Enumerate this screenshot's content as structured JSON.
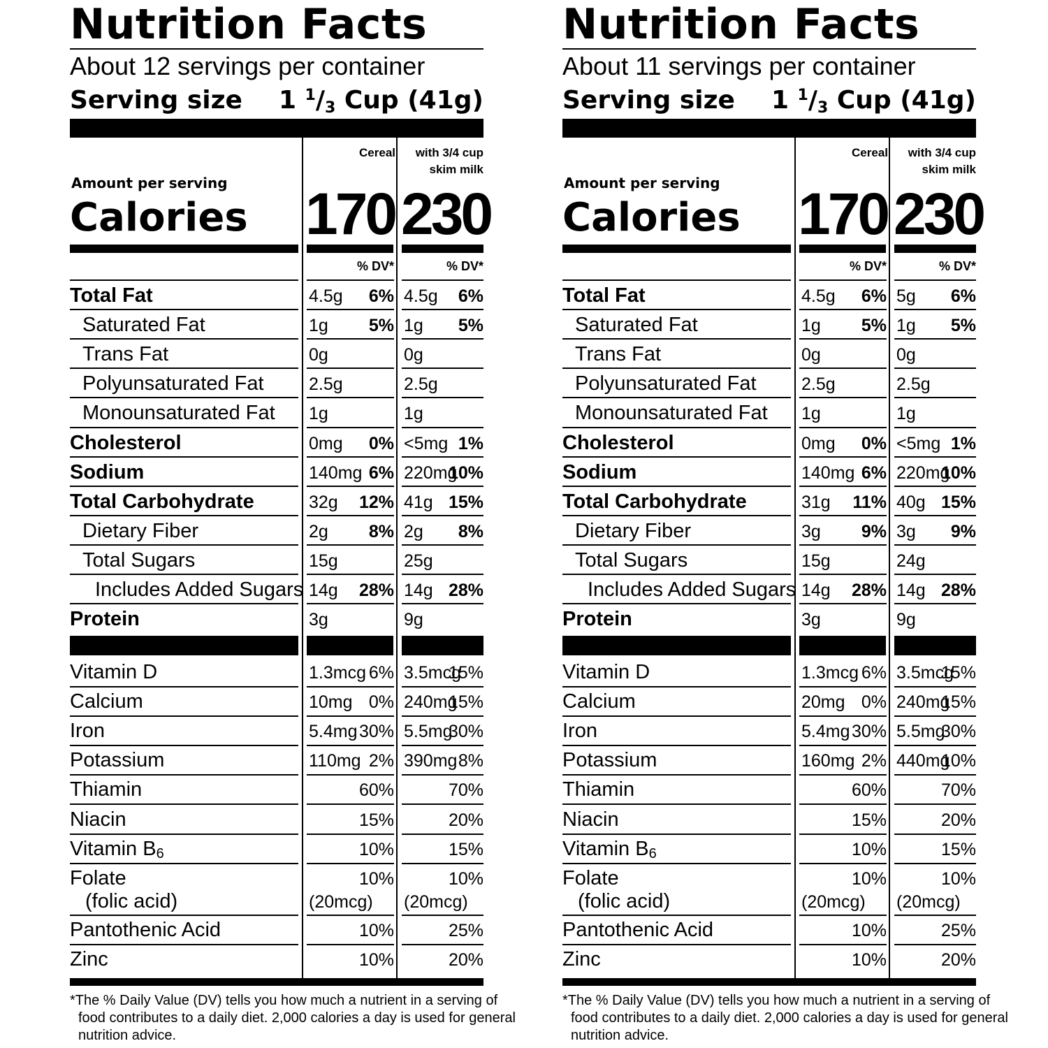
{
  "labels": [
    {
      "title": "Nutrition Facts",
      "servings": "About 12 servings per container",
      "serving_size_label": "Serving size",
      "serving_size": {
        "whole": "1",
        "num": "1",
        "den": "3",
        "rest": "Cup (41g)"
      },
      "columns": [
        {
          "head_lines": [
            "Cereal"
          ]
        },
        {
          "head_lines": [
            "with 3/4 cup",
            "skim milk"
          ]
        }
      ],
      "amount_per_serving": "Amount per serving",
      "calories_label": "Calories",
      "calories": [
        "170",
        "230"
      ],
      "dv_header": "% DV*",
      "nutrients": [
        {
          "name": "Total Fat",
          "bold": true,
          "indent": 0,
          "c1": [
            "4.5g",
            "6%"
          ],
          "c2": [
            "4.5g",
            "6%"
          ]
        },
        {
          "name": "Saturated Fat",
          "bold": false,
          "indent": 1,
          "c1": [
            "1g",
            "5%"
          ],
          "c2": [
            "1g",
            "5%"
          ]
        },
        {
          "name": "Trans Fat",
          "bold": false,
          "indent": 1,
          "c1": [
            "0g",
            ""
          ],
          "c2": [
            "0g",
            ""
          ]
        },
        {
          "name": "Polyunsaturated Fat",
          "bold": false,
          "indent": 1,
          "c1": [
            "2.5g",
            ""
          ],
          "c2": [
            "2.5g",
            ""
          ]
        },
        {
          "name": "Monounsaturated Fat",
          "bold": false,
          "indent": 1,
          "c1": [
            "1g",
            ""
          ],
          "c2": [
            "1g",
            ""
          ]
        },
        {
          "name": "Cholesterol",
          "bold": true,
          "indent": 0,
          "c1": [
            "0mg",
            "0%"
          ],
          "c2": [
            "<5mg",
            "1%"
          ]
        },
        {
          "name": "Sodium",
          "bold": true,
          "indent": 0,
          "c1": [
            "140mg",
            "6%"
          ],
          "c2": [
            "220mg",
            "10%"
          ]
        },
        {
          "name": "Total Carbohydrate",
          "bold": true,
          "indent": 0,
          "c1": [
            "32g",
            "12%"
          ],
          "c2": [
            "41g",
            "15%"
          ]
        },
        {
          "name": "Dietary Fiber",
          "bold": false,
          "indent": 1,
          "c1": [
            "2g",
            "8%"
          ],
          "c2": [
            "2g",
            "8%"
          ]
        },
        {
          "name": "Total Sugars",
          "bold": false,
          "indent": 1,
          "c1": [
            "15g",
            ""
          ],
          "c2": [
            "25g",
            ""
          ]
        },
        {
          "name": "Includes Added Sugars",
          "bold": false,
          "indent": 2,
          "c1": [
            "14g",
            "28%"
          ],
          "c2": [
            "14g",
            "28%"
          ]
        },
        {
          "name": "Protein",
          "bold": true,
          "indent": 0,
          "c1": [
            "3g",
            ""
          ],
          "c2": [
            "9g",
            ""
          ]
        }
      ],
      "vitamins": [
        {
          "name": "Vitamin D",
          "c1": [
            "1.3mcg",
            "6%"
          ],
          "c2": [
            "3.5mcg",
            "15%"
          ]
        },
        {
          "name": "Calcium",
          "c1": [
            "10mg",
            "0%"
          ],
          "c2": [
            "240mg",
            "15%"
          ]
        },
        {
          "name": "Iron",
          "c1": [
            "5.4mg",
            "30%"
          ],
          "c2": [
            "5.5mg",
            "30%"
          ]
        },
        {
          "name": "Potassium",
          "c1": [
            "110mg",
            "2%"
          ],
          "c2": [
            "390mg",
            "8%"
          ]
        },
        {
          "name": "Thiamin",
          "c1": [
            "",
            "60%"
          ],
          "c2": [
            "",
            "70%"
          ]
        },
        {
          "name": "Niacin",
          "c1": [
            "",
            "15%"
          ],
          "c2": [
            "",
            "20%"
          ]
        },
        {
          "name": "Vitamin B6",
          "base": "Vitamin B",
          "sub": "6",
          "c1": [
            "",
            "10%"
          ],
          "c2": [
            "",
            "15%"
          ]
        },
        {
          "name": "Folate",
          "line2": "(folic acid)",
          "c1": [
            "(20mcg)",
            "10%"
          ],
          "c2": [
            "(20mcg)",
            "10%"
          ]
        },
        {
          "name": "Pantothenic Acid",
          "c1": [
            "",
            "10%"
          ],
          "c2": [
            "",
            "25%"
          ]
        },
        {
          "name": "Zinc",
          "c1": [
            "",
            "10%"
          ],
          "c2": [
            "",
            "20%"
          ]
        }
      ],
      "footnote_lines": [
        "*The % Daily Value (DV) tells you how much a nutrient in a serving of",
        "food contributes to a daily diet. 2,000 calories a day is used for general",
        "nutrition advice."
      ]
    },
    {
      "title": "Nutrition Facts",
      "servings": "About 11 servings per container",
      "serving_size_label": "Serving size",
      "serving_size": {
        "whole": "1",
        "num": "1",
        "den": "3",
        "rest": "Cup (41g)"
      },
      "columns": [
        {
          "head_lines": [
            "Cereal"
          ]
        },
        {
          "head_lines": [
            "with 3/4 cup",
            "skim milk"
          ]
        }
      ],
      "amount_per_serving": "Amount per serving",
      "calories_label": "Calories",
      "calories": [
        "170",
        "230"
      ],
      "dv_header": "% DV*",
      "nutrients": [
        {
          "name": "Total Fat",
          "bold": true,
          "indent": 0,
          "c1": [
            "4.5g",
            "6%"
          ],
          "c2": [
            "5g",
            "6%"
          ]
        },
        {
          "name": "Saturated Fat",
          "bold": false,
          "indent": 1,
          "c1": [
            "1g",
            "5%"
          ],
          "c2": [
            "1g",
            "5%"
          ]
        },
        {
          "name": "Trans Fat",
          "bold": false,
          "indent": 1,
          "c1": [
            "0g",
            ""
          ],
          "c2": [
            "0g",
            ""
          ]
        },
        {
          "name": "Polyunsaturated Fat",
          "bold": false,
          "indent": 1,
          "c1": [
            "2.5g",
            ""
          ],
          "c2": [
            "2.5g",
            ""
          ]
        },
        {
          "name": "Monounsaturated Fat",
          "bold": false,
          "indent": 1,
          "c1": [
            "1g",
            ""
          ],
          "c2": [
            "1g",
            ""
          ]
        },
        {
          "name": "Cholesterol",
          "bold": true,
          "indent": 0,
          "c1": [
            "0mg",
            "0%"
          ],
          "c2": [
            "<5mg",
            "1%"
          ]
        },
        {
          "name": "Sodium",
          "bold": true,
          "indent": 0,
          "c1": [
            "140mg",
            "6%"
          ],
          "c2": [
            "220mg",
            "10%"
          ]
        },
        {
          "name": "Total Carbohydrate",
          "bold": true,
          "indent": 0,
          "c1": [
            "31g",
            "11%"
          ],
          "c2": [
            "40g",
            "15%"
          ]
        },
        {
          "name": "Dietary Fiber",
          "bold": false,
          "indent": 1,
          "c1": [
            "3g",
            "9%"
          ],
          "c2": [
            "3g",
            "9%"
          ]
        },
        {
          "name": "Total Sugars",
          "bold": false,
          "indent": 1,
          "c1": [
            "15g",
            ""
          ],
          "c2": [
            "24g",
            ""
          ]
        },
        {
          "name": "Includes Added Sugars",
          "bold": false,
          "indent": 2,
          "c1": [
            "14g",
            "28%"
          ],
          "c2": [
            "14g",
            "28%"
          ]
        },
        {
          "name": "Protein",
          "bold": true,
          "indent": 0,
          "c1": [
            "3g",
            ""
          ],
          "c2": [
            "9g",
            ""
          ]
        }
      ],
      "vitamins": [
        {
          "name": "Vitamin D",
          "c1": [
            "1.3mcg",
            "6%"
          ],
          "c2": [
            "3.5mcg",
            "15%"
          ]
        },
        {
          "name": "Calcium",
          "c1": [
            "20mg",
            "0%"
          ],
          "c2": [
            "240mg",
            "15%"
          ]
        },
        {
          "name": "Iron",
          "c1": [
            "5.4mg",
            "30%"
          ],
          "c2": [
            "5.5mg",
            "30%"
          ]
        },
        {
          "name": "Potassium",
          "c1": [
            "160mg",
            "2%"
          ],
          "c2": [
            "440mg",
            "10%"
          ]
        },
        {
          "name": "Thiamin",
          "c1": [
            "",
            "60%"
          ],
          "c2": [
            "",
            "70%"
          ]
        },
        {
          "name": "Niacin",
          "c1": [
            "",
            "15%"
          ],
          "c2": [
            "",
            "20%"
          ]
        },
        {
          "name": "Vitamin B6",
          "base": "Vitamin B",
          "sub": "6",
          "c1": [
            "",
            "10%"
          ],
          "c2": [
            "",
            "15%"
          ]
        },
        {
          "name": "Folate",
          "line2": "(folic acid)",
          "c1": [
            "(20mcg)",
            "10%"
          ],
          "c2": [
            "(20mcg)",
            "10%"
          ]
        },
        {
          "name": "Pantothenic Acid",
          "c1": [
            "",
            "10%"
          ],
          "c2": [
            "",
            "25%"
          ]
        },
        {
          "name": "Zinc",
          "c1": [
            "",
            "10%"
          ],
          "c2": [
            "",
            "20%"
          ]
        }
      ],
      "footnote_lines": [
        "*The % Daily Value (DV) tells you how much a nutrient in a serving of",
        "food contributes to a daily diet. 2,000 calories a day is used for general",
        "nutrition advice."
      ]
    }
  ]
}
